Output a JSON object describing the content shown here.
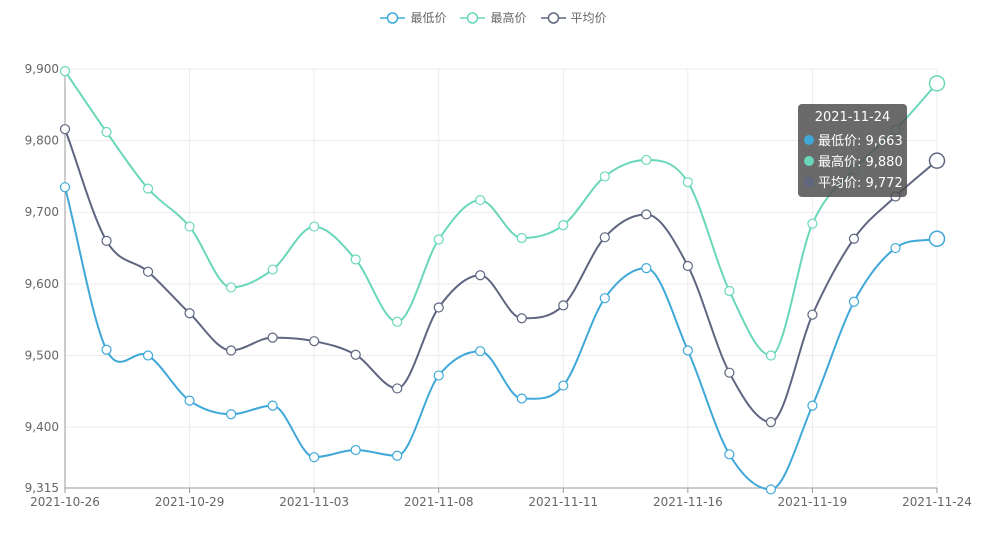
{
  "legend": {
    "items": [
      {
        "label": "最低价",
        "color": "#3fa8d8"
      },
      {
        "label": "最高价",
        "color": "#6ad7ba"
      },
      {
        "label": "平均价",
        "color": "#5f6680"
      }
    ]
  },
  "tooltip": {
    "title": "2021-11-24",
    "rows": [
      {
        "label": "最低价: 9,663",
        "color": "#3fa8d8"
      },
      {
        "label": "最高价: 9,880",
        "color": "#6ad7ba"
      },
      {
        "label": "平均价: 9,772",
        "color": "#5f6680"
      }
    ]
  },
  "chart_data": {
    "type": "line",
    "smooth": true,
    "x": [
      "2021-10-26",
      "2021-10-27",
      "2021-10-28",
      "2021-10-29",
      "2021-11-01",
      "2021-11-02",
      "2021-11-03",
      "2021-11-04",
      "2021-11-05",
      "2021-11-08",
      "2021-11-09",
      "2021-11-10",
      "2021-11-11",
      "2021-11-12",
      "2021-11-15",
      "2021-11-16",
      "2021-11-17",
      "2021-11-18",
      "2021-11-19",
      "2021-11-22",
      "2021-11-23",
      "2021-11-24"
    ],
    "x_tick_labels": [
      "2021-10-26",
      "2021-10-29",
      "2021-11-03",
      "2021-11-08",
      "2021-11-11",
      "2021-11-16",
      "2021-11-19",
      "2021-11-24"
    ],
    "x_tick_indices": [
      0,
      3,
      6,
      9,
      12,
      15,
      18,
      21
    ],
    "y_tick_labels": [
      "9,315",
      "9,400",
      "9,500",
      "9,600",
      "9,700",
      "9,800",
      "9,900"
    ],
    "y_tick_values": [
      9315,
      9400,
      9500,
      9600,
      9700,
      9800,
      9900
    ],
    "ylim": [
      9315,
      9900
    ],
    "grid": true,
    "legend_position": "top-center",
    "highlight_index": 21,
    "series": [
      {
        "name": "最低价",
        "color": "#3fa8d8",
        "values": [
          9735,
          9508,
          9500,
          9437,
          9418,
          9430,
          9358,
          9368,
          9360,
          9472,
          9506,
          9440,
          9458,
          9580,
          9622,
          9507,
          9362,
          9313,
          9430,
          9575,
          9650,
          9663
        ]
      },
      {
        "name": "最高价",
        "color": "#6ad7ba",
        "values": [
          9897,
          9812,
          9733,
          9680,
          9595,
          9620,
          9680,
          9634,
          9547,
          9662,
          9717,
          9664,
          9682,
          9750,
          9773,
          9742,
          9590,
          9500,
          9684,
          9760,
          9815,
          9880
        ]
      },
      {
        "name": "平均价",
        "color": "#5f6680",
        "values": [
          9816,
          9660,
          9617,
          9559,
          9507,
          9525,
          9520,
          9501,
          9454,
          9567,
          9612,
          9552,
          9570,
          9665,
          9697,
          9625,
          9476,
          9407,
          9557,
          9663,
          9722,
          9772
        ]
      }
    ]
  }
}
